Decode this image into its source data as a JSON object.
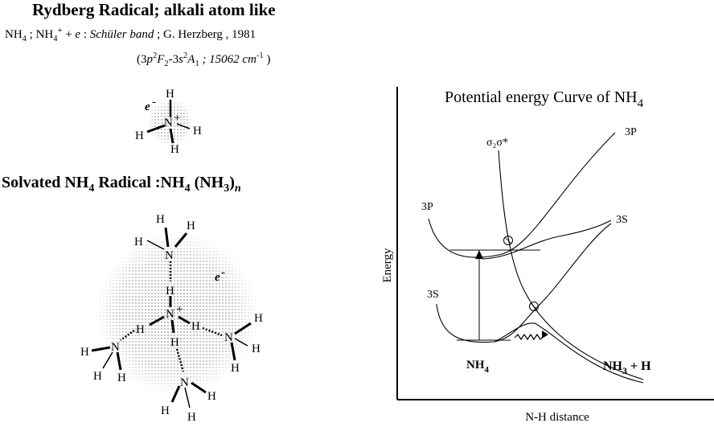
{
  "header": {
    "title": "Rydberg Radical;  alkali atom like",
    "nh4": "NH",
    "nh4_sub": "4",
    "sep1": " ;    ",
    "nh4plus": "NH",
    "nh4plus_sub": "4",
    "nh4plus_sup": "+",
    "plus_e": " + ",
    "e": "e",
    "colon": "    : ",
    "band": "Schüler band",
    "ref": " ; G. Herzberg , 1981",
    "transition_open": "(3",
    "p": "p",
    "p_sup": "2",
    "F": "F",
    "F_sub": "2",
    "dash3": "-3",
    "s": "s",
    "s_sup": "2",
    "A": "A",
    "A_sub": "1",
    "energy": " ; 15062 cm",
    "energy_sup": "-1",
    "transition_close": " )"
  },
  "molecule1": {
    "e_label": "e",
    "e_sup": "-",
    "h_top": "H",
    "n": "N",
    "n_sup": "+",
    "h_left": "H",
    "h_right": "H",
    "h_bottom": "H"
  },
  "solvated": {
    "title_a": "Solvated NH",
    "title_a_sub": "4",
    "title_b": " Radical :NH",
    "title_b_sub": "4",
    "title_c": " (NH",
    "title_c_sub": "3",
    "title_d": ")",
    "title_n": "n",
    "h": "H",
    "n": "N",
    "n_sup": "+",
    "e": "e",
    "e_sup": "-"
  },
  "graph": {
    "title": "Potential energy Curve of NH",
    "title_sub": "4",
    "ylabel": "Energy",
    "xlabel": "N-H distance",
    "label_sigma": "σ₂σ*",
    "label_3p_right": "3P",
    "label_3p_left": "3P",
    "label_3s_right": "3S",
    "label_3s_left": "3S",
    "label_nh4": "NH",
    "label_nh4_sub": "4",
    "label_nh3h": "NH",
    "label_nh3h_sub": "3",
    "label_nh3h_rest": " + H"
  }
}
